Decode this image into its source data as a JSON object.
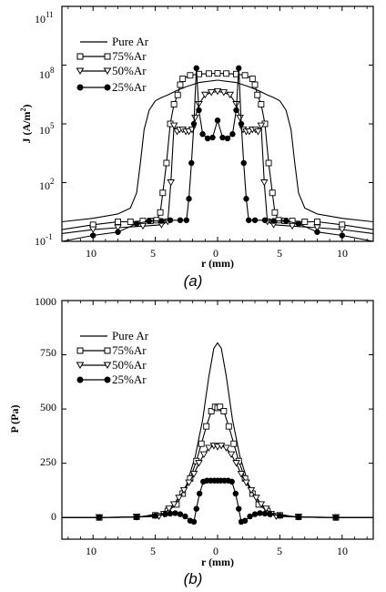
{
  "chart_data": [
    {
      "type": "line",
      "panel_label": "(a)",
      "xlabel": "r (mm)",
      "ylabel": "J (A/m²)",
      "yscale": "log",
      "xlim": [
        -12.5,
        12.5
      ],
      "ylim": [
        0.1,
        100000000000.0
      ],
      "x_ticks": [
        10,
        5,
        0,
        5,
        10
      ],
      "y_ticks": [
        "10-1",
        "102",
        "105",
        "108",
        "1011"
      ],
      "legend_position": "top-left",
      "series": [
        {
          "name": "Pure Ar",
          "marker": "none",
          "x": [
            -12.5,
            -10,
            -8,
            -7,
            -6.5,
            -6.2,
            -5.9,
            -5.5,
            -5,
            -4.5,
            -4,
            -3.3,
            -2.5,
            -1.5,
            0,
            1.5,
            2.5,
            3.3,
            4,
            4.5,
            5,
            5.5,
            5.9,
            6.2,
            6.5,
            7,
            8,
            10,
            12.5
          ],
          "y": [
            1,
            1.5,
            2.5,
            5,
            30,
            1000.0,
            50000.0,
            500000.0,
            1500000.0,
            2200000.0,
            3000000.0,
            5000000.0,
            8000000.0,
            13000000.0,
            17000000.0,
            13000000.0,
            8000000.0,
            5000000.0,
            3000000.0,
            2200000.0,
            1500000.0,
            500000.0,
            50000.0,
            1000.0,
            30,
            5,
            2.5,
            1.5,
            1
          ]
        },
        {
          "name": "75%Ar",
          "marker": "square",
          "x": [
            -12.5,
            -10,
            -8,
            -7,
            -6,
            -5.4,
            -4.9,
            -4.6,
            -4.4,
            -4.1,
            -3.8,
            -3.5,
            -3.2,
            -3,
            -2.8,
            -2.2,
            -1.5,
            -0.7,
            0,
            0.7,
            1.5,
            2.2,
            2.8,
            3,
            3.2,
            3.5,
            3.8,
            4.1,
            4.4,
            4.6,
            4.9,
            5.4,
            6,
            7,
            8,
            10,
            12.5
          ],
          "y": [
            0.4,
            0.7,
            1.0,
            1.0,
            1.1,
            1.1,
            1.2,
            3,
            30,
            1000.0,
            100000.0,
            1000000.0,
            3000000.0,
            10000000.0,
            20000000.0,
            30000000.0,
            35000000.0,
            37000000.0,
            38000000.0,
            37000000.0,
            35000000.0,
            30000000.0,
            20000000.0,
            10000000.0,
            3000000.0,
            1000000.0,
            100000.0,
            1000.0,
            30,
            3,
            1.2,
            1.1,
            1.1,
            1.0,
            1.0,
            0.7,
            0.4
          ]
        },
        {
          "name": "50%Ar",
          "marker": "triangle",
          "x": [
            -12.5,
            -10,
            -8,
            -6,
            -4.5,
            -4,
            -3.75,
            -3.5,
            -3.25,
            -3.05,
            -2.8,
            -2.55,
            -2.3,
            -2.05,
            -1.8,
            -1.5,
            -1,
            -0.5,
            0,
            0.5,
            1,
            1.5,
            1.8,
            2.05,
            2.3,
            2.55,
            2.8,
            3.05,
            3.25,
            3.5,
            3.75,
            4,
            4.5,
            6,
            8,
            10,
            12.5
          ],
          "y": [
            0.25,
            0.4,
            0.5,
            0.6,
            0.7,
            1,
            100,
            80000.0,
            40000.0,
            50000.0,
            50000.0,
            40000.0,
            40000.0,
            50000.0,
            200000.0,
            1000000.0,
            3000000.0,
            4000000.0,
            4500000.0,
            4000000.0,
            3000000.0,
            1000000.0,
            200000.0,
            50000.0,
            40000.0,
            40000.0,
            50000.0,
            50000.0,
            40000.0,
            80000.0,
            100,
            1,
            0.7,
            0.6,
            0.5,
            0.4,
            0.25
          ]
        },
        {
          "name": "25%Ar",
          "marker": "circle",
          "x": [
            -12.5,
            -10,
            -8,
            -6.5,
            -5.5,
            -4.5,
            -3.8,
            -3,
            -2.5,
            -2.3,
            -2.1,
            -1.9,
            -1.7,
            -1.5,
            -1.2,
            -0.8,
            -0.4,
            0,
            0.4,
            0.8,
            1.2,
            1.5,
            1.7,
            1.9,
            2.1,
            2.3,
            2.5,
            3,
            3.8,
            4.5,
            5.5,
            6.5,
            8,
            10,
            12.5
          ],
          "y": [
            0.1,
            0.2,
            0.3,
            0.8,
            1.1,
            1.1,
            1.2,
            1.2,
            1.2,
            15,
            1000.0,
            100000.0,
            70000000.0,
            500000.0,
            30000.0,
            18000.0,
            20000.0,
            150000.0,
            20000.0,
            18000.0,
            30000.0,
            500000.0,
            70000000.0,
            100000.0,
            1000.0,
            15,
            1.2,
            1.2,
            1.2,
            1.1,
            1.1,
            0.8,
            0.3,
            0.2,
            0.1
          ]
        }
      ]
    },
    {
      "type": "line",
      "panel_label": "(b)",
      "xlabel": "r (mm)",
      "ylabel": "P (Pa)",
      "xlim": [
        -12.5,
        12.5
      ],
      "ylim": [
        -100,
        1000
      ],
      "x_ticks": [
        10,
        5,
        0,
        5,
        10
      ],
      "y_ticks": [
        0,
        250,
        500,
        750,
        1000
      ],
      "legend_position": "top-left",
      "series": [
        {
          "name": "Pure Ar",
          "marker": "none",
          "x": [
            -12.5,
            -8,
            -6,
            -4.5,
            -3.5,
            -2.5,
            -1.8,
            -1.2,
            -0.7,
            -0.3,
            0,
            0.3,
            0.7,
            1.2,
            1.8,
            2.5,
            3.5,
            4.5,
            6,
            8,
            12.5
          ],
          "y": [
            0,
            0,
            5,
            20,
            60,
            150,
            280,
            450,
            650,
            780,
            805,
            780,
            650,
            450,
            280,
            150,
            60,
            20,
            5,
            0,
            0
          ]
        },
        {
          "name": "75%Ar",
          "marker": "square",
          "x": [
            -12.5,
            -9.5,
            -6.5,
            -5,
            -4,
            -3.3,
            -2.8,
            -2.2,
            -1.7,
            -1.3,
            -0.9,
            -0.5,
            -0.2,
            0,
            0.2,
            0.5,
            0.9,
            1.3,
            1.7,
            2.2,
            2.8,
            3.3,
            4,
            5,
            6.5,
            9.5,
            12.5
          ],
          "y": [
            0,
            0,
            3,
            10,
            30,
            60,
            110,
            180,
            260,
            340,
            420,
            490,
            510,
            505,
            510,
            490,
            420,
            340,
            260,
            180,
            110,
            60,
            30,
            10,
            3,
            0,
            0
          ]
        },
        {
          "name": "50%Ar",
          "marker": "triangle",
          "x": [
            -12.5,
            -9.5,
            -6.5,
            -4.7,
            -4.3,
            -3.9,
            -3.5,
            -3.1,
            -2.7,
            -2.3,
            -1.9,
            -1.5,
            -1.1,
            -0.7,
            -0.3,
            0,
            0.3,
            0.7,
            1.1,
            1.5,
            1.9,
            2.3,
            2.7,
            3.1,
            3.5,
            3.9,
            4.3,
            4.7,
            6.5,
            9.5,
            12.5
          ],
          "y": [
            0,
            0,
            2,
            5,
            15,
            40,
            60,
            90,
            125,
            160,
            200,
            250,
            290,
            320,
            330,
            325,
            330,
            320,
            290,
            250,
            200,
            160,
            125,
            90,
            60,
            40,
            15,
            5,
            2,
            0,
            0
          ]
        },
        {
          "name": "25%Ar",
          "marker": "circle",
          "x": [
            -12.5,
            -9.5,
            -6.5,
            -5,
            -4.2,
            -3.8,
            -3.4,
            -3,
            -2.6,
            -2.2,
            -1.9,
            -1.7,
            -1.45,
            -1.15,
            -0.85,
            -0.55,
            -0.25,
            0,
            0.25,
            0.55,
            0.85,
            1.15,
            1.45,
            1.7,
            1.9,
            2.2,
            2.6,
            3,
            3.4,
            3.8,
            4.2,
            5,
            6.5,
            9.5,
            12.5
          ],
          "y": [
            0,
            0,
            2,
            8,
            15,
            18,
            20,
            15,
            5,
            -15,
            -20,
            40,
            110,
            165,
            170,
            170,
            170,
            170,
            170,
            170,
            170,
            165,
            110,
            40,
            -20,
            -15,
            5,
            15,
            20,
            18,
            15,
            8,
            2,
            0,
            0
          ]
        }
      ]
    }
  ],
  "legend": [
    "Pure Ar",
    "75%Ar",
    "50%Ar",
    "25%Ar"
  ],
  "captions": {
    "a": "(a)",
    "b": "(b)"
  },
  "ticks_a": {
    "x": [
      "10",
      "5",
      "0",
      "5",
      "10"
    ],
    "y_base": [
      "10",
      "10",
      "10",
      "10",
      "10"
    ],
    "y_exp": [
      "-1",
      "2",
      "5",
      "8",
      "11"
    ]
  },
  "ticks_b": {
    "x": [
      "10",
      "5",
      "0",
      "5",
      "10"
    ],
    "y": [
      "0",
      "250",
      "500",
      "750",
      "1000"
    ]
  },
  "ylabel_a": {
    "main": "J (A/m",
    "sup": "2",
    "end": ")"
  }
}
